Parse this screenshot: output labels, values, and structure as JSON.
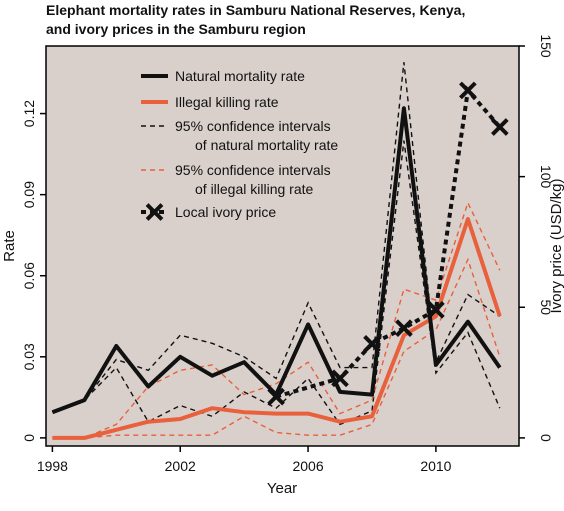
{
  "chart_data": {
    "type": "line",
    "title": [
      "Elephant mortality rates in Samburu National Reserves, Kenya,",
      "and ivory prices in the Samburu region"
    ],
    "xlabel": "Year",
    "ylabel": "Rate",
    "y2label": "Ivory price (USD/kg)",
    "xlim": [
      1997.8,
      2012.6
    ],
    "ylim": [
      -0.003,
      0.145
    ],
    "y2lim": [
      -3.1,
      150
    ],
    "xticks": [
      1998,
      2002,
      2006,
      2010
    ],
    "yticks": [
      0,
      0.03,
      0.06,
      0.09,
      0.12
    ],
    "y2ticks": [
      0,
      50,
      100,
      150
    ],
    "colors": {
      "background": "#d9d0cc",
      "natural": "#111111",
      "illegal": "#e8603c",
      "ivory": "#111111"
    },
    "legend_position": "top-left",
    "x": [
      1998,
      1999,
      2000,
      2001,
      2002,
      2003,
      2004,
      2005,
      2006,
      2007,
      2008,
      2009,
      2010,
      2011,
      2012
    ],
    "series": [
      {
        "name": "Natural mortality rate",
        "axis": "left",
        "style": "solid-thick",
        "color": "#111111",
        "values": [
          0.0095,
          0.014,
          0.034,
          0.019,
          0.03,
          0.023,
          0.028,
          0.016,
          0.042,
          0.017,
          0.016,
          0.122,
          0.027,
          0.043,
          0.026
        ]
      },
      {
        "name": "Illegal killing rate",
        "axis": "left",
        "style": "solid-thick",
        "color": "#e8603c",
        "values": [
          0,
          0,
          0.003,
          0.006,
          0.007,
          0.011,
          0.0095,
          0.009,
          0.009,
          0.006,
          0.008,
          0.038,
          0.045,
          0.081,
          0.045
        ]
      },
      {
        "name": "natural_ci_upper",
        "axis": "left",
        "style": "dashed-thin",
        "color": "#111111",
        "values": [
          0.0095,
          0.014,
          0.029,
          0.025,
          0.038,
          0.035,
          0.03,
          0.022,
          0.05,
          0.026,
          0.026,
          0.139,
          0.028,
          0.053,
          0.045
        ]
      },
      {
        "name": "natural_ci_lower",
        "axis": "left",
        "style": "dashed-thin",
        "color": "#111111",
        "values": [
          0.0095,
          0.014,
          0.026,
          0.006,
          0.012,
          0.008,
          0.017,
          0.011,
          0.022,
          0.005,
          0.01,
          0.11,
          0.024,
          0.039,
          0.011
        ]
      },
      {
        "name": "illegal_ci_upper",
        "axis": "left",
        "style": "dashed-thin",
        "color": "#e8603c",
        "values": [
          0,
          0,
          0.005,
          0.019,
          0.025,
          0.027,
          0.016,
          0.02,
          0.028,
          0.009,
          0.014,
          0.055,
          0.051,
          0.087,
          0.062
        ]
      },
      {
        "name": "illegal_ci_lower",
        "axis": "left",
        "style": "dashed-thin",
        "color": "#e8603c",
        "values": [
          0,
          0,
          0.001,
          0.001,
          0.001,
          0.001,
          0.008,
          0.002,
          0.001,
          0.001,
          0.005,
          0.032,
          0.04,
          0.066,
          0.03
        ]
      },
      {
        "name": "Local ivory price",
        "axis": "right",
        "style": "dashed-thick-x",
        "color": "#111111",
        "x": [
          2005,
          2007,
          2008,
          2009,
          2010,
          2011,
          2012
        ],
        "values": [
          15.8,
          22.8,
          36.0,
          42.0,
          49.0,
          133.0,
          119.0
        ]
      }
    ],
    "legend": [
      {
        "label": "Natural mortality rate",
        "style": "solid-thick",
        "color": "#111111"
      },
      {
        "label": "Illegal killing rate",
        "style": "solid-thick",
        "color": "#e8603c"
      },
      {
        "label": [
          "95% confidence intervals",
          "of natural mortality rate"
        ],
        "style": "dashed-thin",
        "color": "#111111"
      },
      {
        "label": [
          "95% confidence intervals",
          "of illegal killing rate"
        ],
        "style": "dashed-thin",
        "color": "#e8603c"
      },
      {
        "label": "Local ivory price",
        "style": "dashed-thick-x",
        "color": "#111111"
      }
    ]
  }
}
